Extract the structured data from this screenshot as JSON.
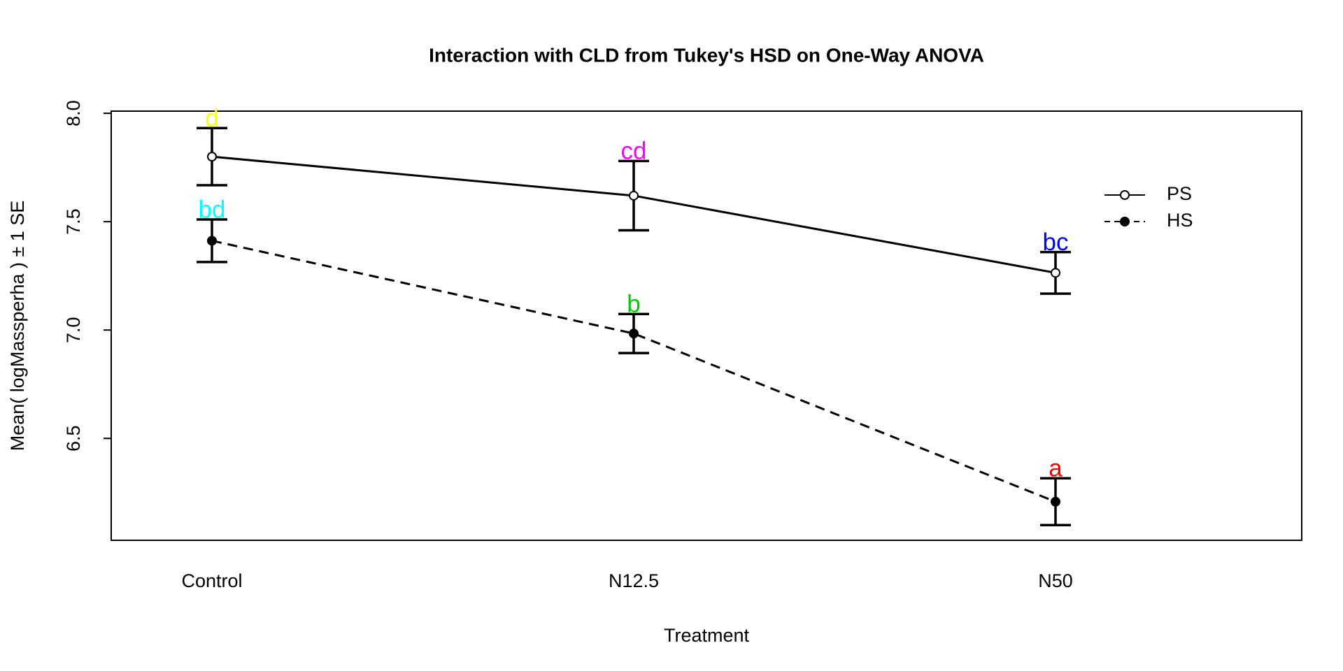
{
  "chart_data": {
    "type": "line",
    "title": "Interaction with CLD from Tukey's HSD on One-Way ANOVA",
    "x_label": "Treatment",
    "y_label": "Mean( logMassperha ) ±  1 SE",
    "categories": [
      "Control",
      "N12.5",
      "N50"
    ],
    "series": [
      {
        "name": "PS",
        "color": "#000000",
        "dashed": false,
        "marker": "open",
        "values": [
          7.8,
          7.62,
          7.264
        ],
        "se": [
          0.132,
          0.16,
          0.096
        ],
        "letters": [
          "d",
          "cd",
          "bc"
        ],
        "letter_colors": [
          "#ffff00",
          "#ff00ff",
          "#0000ff"
        ]
      },
      {
        "name": "HS",
        "color": "#000000",
        "dashed": true,
        "marker": "filled",
        "values": [
          7.412,
          6.984,
          6.208
        ],
        "se": [
          0.098,
          0.09,
          0.108
        ],
        "letters": [
          "bd",
          "b",
          "a"
        ],
        "letter_colors": [
          "#00ffff",
          "#00cd00",
          "#ff0000"
        ]
      }
    ],
    "ylim": [
      6.03,
      8.01
    ],
    "yticks": [
      6.5,
      {
        "value": 7,
        "label": "7.0"
      },
      7.5,
      {
        "value": 8,
        "label": "8.0"
      }
    ],
    "legend": "topright",
    "grid": false
  }
}
